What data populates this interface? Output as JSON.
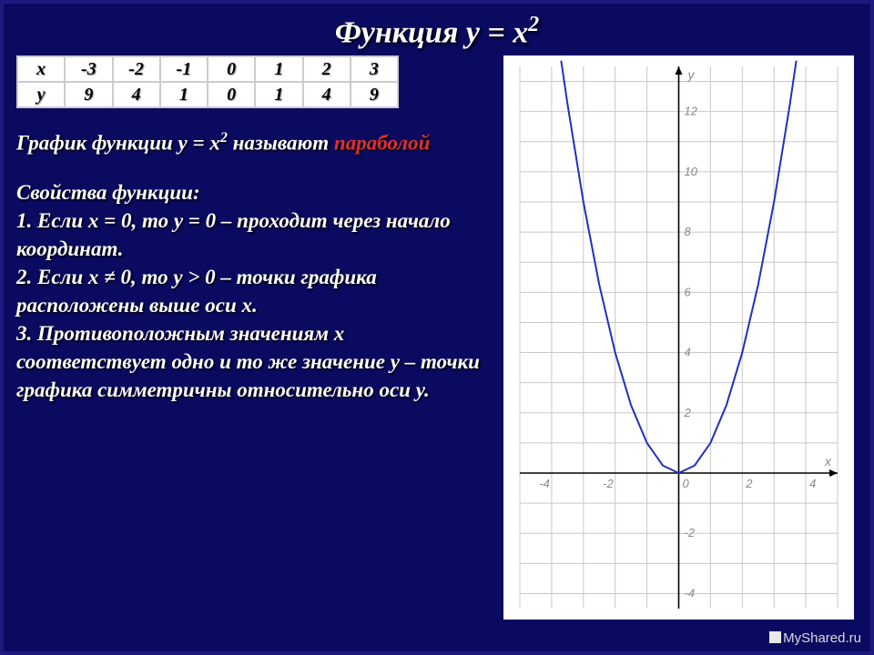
{
  "title_html": "Функция y = x<sup>2</sup>",
  "table": {
    "rows": [
      [
        "x",
        "-3",
        "-2",
        "-1",
        "0",
        "1",
        "2",
        "3"
      ],
      [
        "y",
        "9",
        "4",
        "1",
        "0",
        "1",
        "4",
        "9"
      ]
    ],
    "cell_bg": "#ffffff",
    "cell_fg": "#000000",
    "border_color": "#cccccc"
  },
  "statement_pre": "График функции y = x",
  "statement_sup": "2",
  "statement_mid": " называют ",
  "statement_red": "параболой",
  "props_title": "Свойства функции:",
  "props": [
    "1. Если x = 0, то y = 0 – проходит через начало координат.",
    "2. Если x ≠ 0, то y > 0 – точки графика расположены выше оси x.",
    "3. Противоположным значениям x соответствует одно и то же значение y – точки графика симметричны относительно оси y."
  ],
  "chart": {
    "type": "line",
    "background_color": "#ffffff",
    "grid_color": "#c8c8c8",
    "axis_color": "#000000",
    "curve_color": "#2030c0",
    "curve_width": 2,
    "xlim": [
      -5,
      5
    ],
    "ylim": [
      -4.5,
      13.5
    ],
    "xtick_step": 2,
    "ytick_step": 2,
    "xticks": [
      -4,
      -2,
      0,
      2,
      4
    ],
    "yticks": [
      -4,
      -2,
      0,
      2,
      4,
      6,
      8,
      10,
      12
    ],
    "x_label": "x",
    "y_label": "y",
    "label_color": "#888888",
    "label_fontsize": 14,
    "tick_fontsize": 13,
    "series": {
      "x": [
        -3.7,
        -3.5,
        -3.0,
        -2.5,
        -2.0,
        -1.5,
        -1.0,
        -0.5,
        0,
        0.5,
        1.0,
        1.5,
        2.0,
        2.5,
        3.0,
        3.5,
        3.7
      ],
      "y": [
        13.69,
        12.25,
        9,
        6.25,
        4,
        2.25,
        1,
        0.25,
        0,
        0.25,
        1,
        2.25,
        4,
        6.25,
        9,
        12.25,
        13.69
      ]
    }
  },
  "watermark": "MyShared.ru",
  "colors": {
    "page_bg": "#0a0a60",
    "text": "#ffffff",
    "shadow": "#000000",
    "highlight": "#e03030"
  }
}
